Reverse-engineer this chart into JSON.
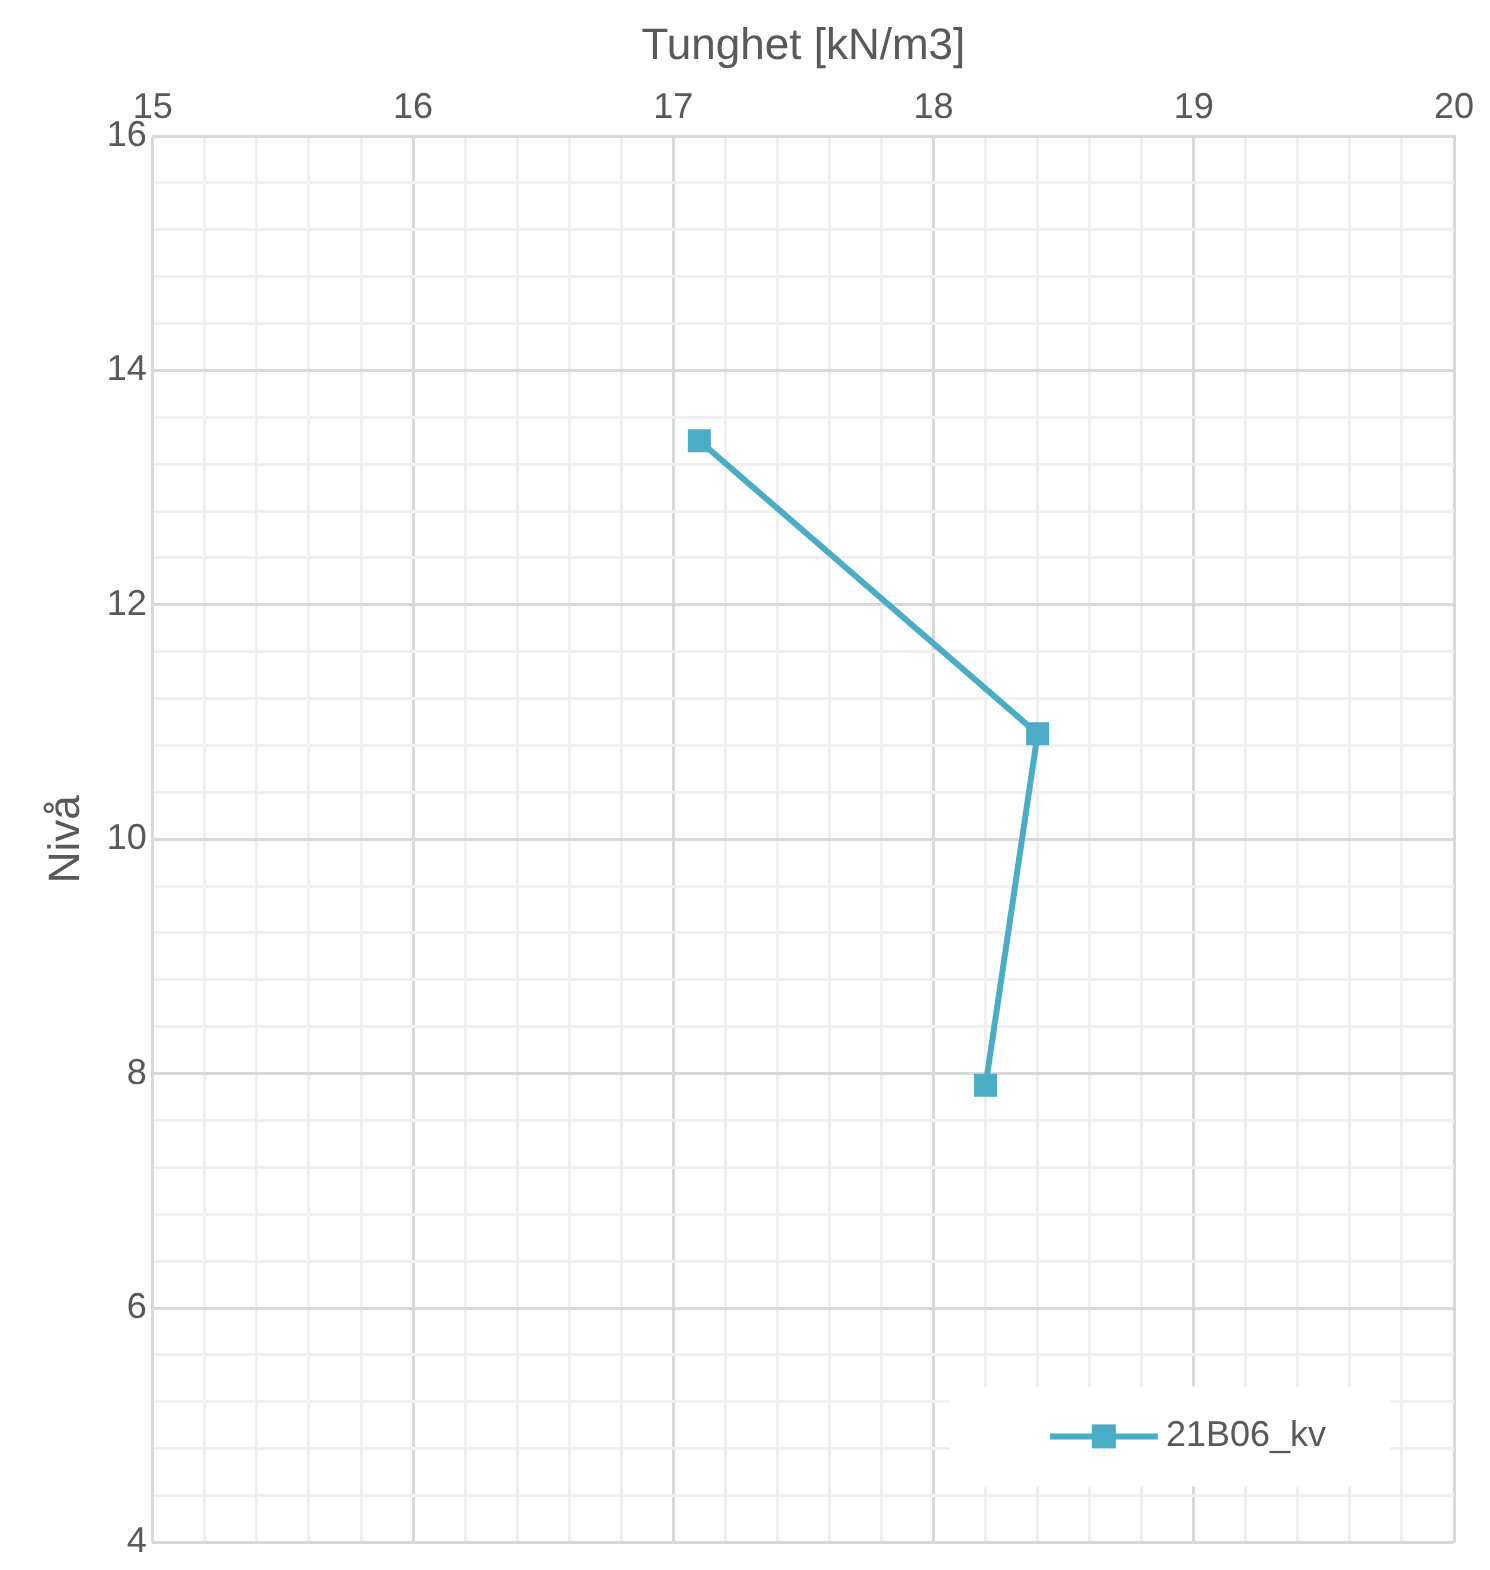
{
  "chart_data": {
    "type": "line",
    "xlabel": "Tunghet [kN/m3]",
    "ylabel": "Nivå",
    "series": [
      {
        "name": "21B06_kv",
        "color": "#4bacc6",
        "x": [
          17.1,
          18.4,
          18.2
        ],
        "values": [
          13.4,
          10.9,
          7.9
        ]
      }
    ],
    "xlim": [
      15,
      20
    ],
    "xticks": [
      15,
      {
        "value": 15.2,
        "label": null
      },
      {
        "value": 15.4,
        "label": null
      },
      {
        "value": 15.6,
        "label": null
      },
      {
        "value": 15.8,
        "label": null
      },
      16,
      {
        "value": 16.2,
        "label": null
      },
      {
        "value": 16.4,
        "label": null
      },
      {
        "value": 16.6,
        "label": null
      },
      {
        "value": 16.8,
        "label": null
      },
      17,
      {
        "value": 17.2,
        "label": null
      },
      {
        "value": 17.4,
        "label": null
      },
      {
        "value": 17.6,
        "label": null
      },
      {
        "value": 17.8,
        "label": null
      },
      18,
      {
        "value": 18.2,
        "label": null
      },
      {
        "value": 18.4,
        "label": null
      },
      {
        "value": 18.6,
        "label": null
      },
      {
        "value": 18.8,
        "label": null
      },
      19,
      {
        "value": 19.2,
        "label": null
      },
      {
        "value": 19.4,
        "label": null
      },
      {
        "value": 19.6,
        "label": null
      },
      {
        "value": 19.8,
        "label": null
      },
      20
    ],
    "ylim": [
      4,
      16
    ],
    "yticks": [
      4,
      {
        "value": 4.4,
        "label": null
      },
      {
        "value": 4.8,
        "label": null
      },
      {
        "value": 5.2,
        "label": null
      },
      {
        "value": 5.6,
        "label": null
      },
      6,
      {
        "value": 6.4,
        "label": null
      },
      {
        "value": 6.8,
        "label": null
      },
      {
        "value": 7.2,
        "label": null
      },
      {
        "value": 7.6,
        "label": null
      },
      8,
      {
        "value": 8.4,
        "label": null
      },
      {
        "value": 8.8,
        "label": null
      },
      {
        "value": 9.2,
        "label": null
      },
      {
        "value": 9.6,
        "label": null
      },
      10,
      {
        "value": 10.4,
        "label": null
      },
      {
        "value": 10.8,
        "label": null
      },
      {
        "value": 11.2,
        "label": null
      },
      {
        "value": 11.6,
        "label": null
      },
      12,
      {
        "value": 12.4,
        "label": null
      },
      {
        "value": 12.8,
        "label": null
      },
      {
        "value": 13.2,
        "label": null
      },
      {
        "value": 13.6,
        "label": null
      },
      14,
      {
        "value": 14.4,
        "label": null
      },
      {
        "value": 14.8,
        "label": null
      },
      {
        "value": 15.2,
        "label": null
      },
      {
        "value": 15.6,
        "label": null
      },
      16
    ],
    "grid": true,
    "legend": "bottom right",
    "marker": "square",
    "line_style": "solid"
  }
}
